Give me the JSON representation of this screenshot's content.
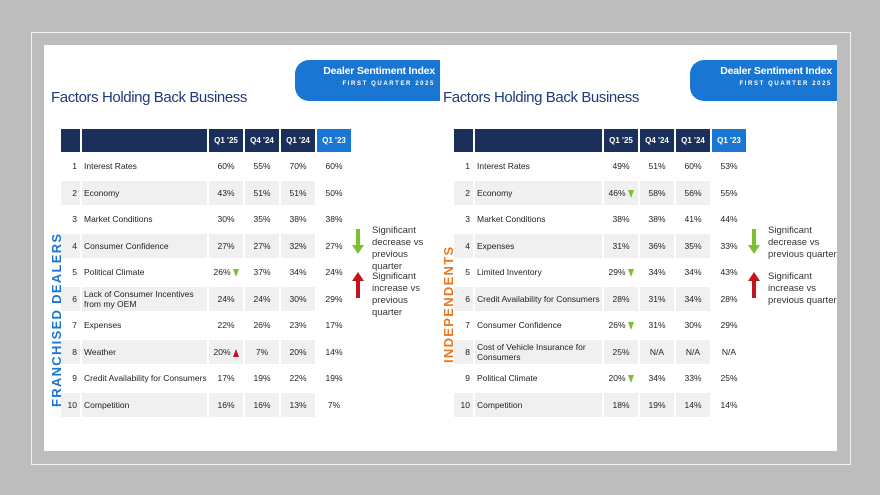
{
  "badge": {
    "line1": "Dealer Sentiment Index",
    "line2": "FIRST QUARTER 2025"
  },
  "columns": [
    "Q1 '25",
    "Q4 '24",
    "Q1 '24",
    "Q1 '23"
  ],
  "legend": {
    "decrease": "Significant decrease vs previous quarter",
    "increase": "Significant increase vs previous quarter"
  },
  "panels": [
    {
      "title": "Factors Holding Back Business",
      "segment": "FRANCHISED DEALERS",
      "segment_color": "#1976d2",
      "rows": [
        {
          "rank": "1",
          "factor": "Interest Rates",
          "q1_25": "60%",
          "q4_24": "55%",
          "q1_24": "70%",
          "q1_23": "60%",
          "flag": ""
        },
        {
          "rank": "2",
          "factor": "Economy",
          "q1_25": "43%",
          "q4_24": "51%",
          "q1_24": "51%",
          "q1_23": "50%",
          "flag": ""
        },
        {
          "rank": "3",
          "factor": "Market Conditions",
          "q1_25": "30%",
          "q4_24": "35%",
          "q1_24": "38%",
          "q1_23": "38%",
          "flag": ""
        },
        {
          "rank": "4",
          "factor": "Consumer Confidence",
          "q1_25": "27%",
          "q4_24": "27%",
          "q1_24": "32%",
          "q1_23": "27%",
          "flag": ""
        },
        {
          "rank": "5",
          "factor": "Political Climate",
          "q1_25": "26%",
          "q4_24": "37%",
          "q1_24": "34%",
          "q1_23": "24%",
          "flag": "down"
        },
        {
          "rank": "6",
          "factor": "Lack of Consumer Incentives from my OEM",
          "q1_25": "24%",
          "q4_24": "24%",
          "q1_24": "30%",
          "q1_23": "29%",
          "flag": ""
        },
        {
          "rank": "7",
          "factor": "Expenses",
          "q1_25": "22%",
          "q4_24": "26%",
          "q1_24": "23%",
          "q1_23": "17%",
          "flag": ""
        },
        {
          "rank": "8",
          "factor": "Weather",
          "q1_25": "20%",
          "q4_24": "7%",
          "q1_24": "20%",
          "q1_23": "14%",
          "flag": "up"
        },
        {
          "rank": "9",
          "factor": "Credit Availability for Consumers",
          "q1_25": "17%",
          "q4_24": "19%",
          "q1_24": "22%",
          "q1_23": "19%",
          "flag": ""
        },
        {
          "rank": "10",
          "factor": "Competition",
          "q1_25": "16%",
          "q4_24": "16%",
          "q1_24": "13%",
          "q1_23": "7%",
          "flag": ""
        }
      ]
    },
    {
      "title": "Factors Holding Back Business",
      "segment": "INDEPENDENTS",
      "segment_color": "#e87722",
      "rows": [
        {
          "rank": "1",
          "factor": "Interest Rates",
          "q1_25": "49%",
          "q4_24": "51%",
          "q1_24": "60%",
          "q1_23": "53%",
          "flag": ""
        },
        {
          "rank": "2",
          "factor": "Economy",
          "q1_25": "46%",
          "q4_24": "58%",
          "q1_24": "56%",
          "q1_23": "55%",
          "flag": "down"
        },
        {
          "rank": "3",
          "factor": "Market Conditions",
          "q1_25": "38%",
          "q4_24": "38%",
          "q1_24": "41%",
          "q1_23": "44%",
          "flag": ""
        },
        {
          "rank": "4",
          "factor": "Expenses",
          "q1_25": "31%",
          "q4_24": "36%",
          "q1_24": "35%",
          "q1_23": "33%",
          "flag": ""
        },
        {
          "rank": "5",
          "factor": "Limited Inventory",
          "q1_25": "29%",
          "q4_24": "34%",
          "q1_24": "34%",
          "q1_23": "43%",
          "flag": "down"
        },
        {
          "rank": "6",
          "factor": "Credit Availability for Consumers",
          "q1_25": "28%",
          "q4_24": "31%",
          "q1_24": "34%",
          "q1_23": "28%",
          "flag": ""
        },
        {
          "rank": "7",
          "factor": "Consumer Confidence",
          "q1_25": "26%",
          "q4_24": "31%",
          "q1_24": "30%",
          "q1_23": "29%",
          "flag": "down"
        },
        {
          "rank": "8",
          "factor": "Cost of Vehicle Insurance for Consumers",
          "q1_25": "25%",
          "q4_24": "N/A",
          "q1_24": "N/A",
          "q1_23": "N/A",
          "flag": ""
        },
        {
          "rank": "9",
          "factor": "Political Climate",
          "q1_25": "20%",
          "q4_24": "34%",
          "q1_24": "33%",
          "q1_23": "25%",
          "flag": "down"
        },
        {
          "rank": "10",
          "factor": "Competition",
          "q1_25": "18%",
          "q4_24": "19%",
          "q1_24": "14%",
          "q1_23": "14%",
          "flag": ""
        }
      ]
    }
  ]
}
